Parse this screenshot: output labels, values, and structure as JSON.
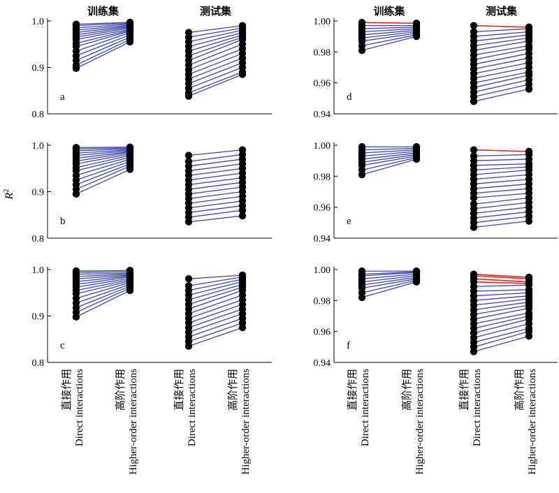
{
  "headers": {
    "train": "训练集",
    "test": "测试集"
  },
  "y_axis_label": {
    "main": "R",
    "sup": "2"
  },
  "categories": [
    {
      "cn": "直接作用",
      "en": "Direct interactions"
    },
    {
      "cn": "高阶作用",
      "en": "Higher-order interactions"
    }
  ],
  "colors": {
    "increase": "#3a47a8",
    "decrease": "#e8231e",
    "marker": "#000000"
  },
  "chart_data": [
    {
      "type": "line",
      "panel": "a",
      "ylim": [
        0.8,
        1.0
      ],
      "yticks": [
        "0.8",
        "0.9",
        "1.0"
      ],
      "yticks_values": [
        0.8,
        0.9,
        1.0
      ],
      "train": {
        "direct": [
          0.898,
          0.905,
          0.915,
          0.925,
          0.935,
          0.945,
          0.952,
          0.96,
          0.965,
          0.97,
          0.975,
          0.98,
          0.985,
          0.99,
          0.993
        ],
        "higher": [
          0.955,
          0.96,
          0.965,
          0.97,
          0.975,
          0.978,
          0.98,
          0.982,
          0.985,
          0.987,
          0.989,
          0.991,
          0.993,
          0.995,
          0.997
        ]
      },
      "test": {
        "direct": [
          0.838,
          0.845,
          0.855,
          0.865,
          0.875,
          0.885,
          0.895,
          0.905,
          0.915,
          0.925,
          0.935,
          0.945,
          0.955,
          0.965,
          0.975
        ],
        "higher": [
          0.885,
          0.89,
          0.9,
          0.91,
          0.92,
          0.93,
          0.94,
          0.95,
          0.96,
          0.965,
          0.97,
          0.975,
          0.98,
          0.985,
          0.99
        ]
      }
    },
    {
      "type": "line",
      "panel": "b",
      "ylim": [
        0.8,
        1.0
      ],
      "yticks": [
        "0.8",
        "0.9",
        "1.0"
      ],
      "yticks_values": [
        0.8,
        0.9,
        1.0
      ],
      "train": {
        "direct": [
          0.895,
          0.905,
          0.915,
          0.925,
          0.935,
          0.945,
          0.952,
          0.96,
          0.966,
          0.972,
          0.978,
          0.983,
          0.988,
          0.992,
          0.995
        ],
        "higher": [
          0.948,
          0.955,
          0.96,
          0.965,
          0.97,
          0.974,
          0.978,
          0.981,
          0.984,
          0.986,
          0.988,
          0.99,
          0.992,
          0.994,
          0.996
        ]
      },
      "test": {
        "direct": [
          0.835,
          0.845,
          0.855,
          0.865,
          0.875,
          0.885,
          0.895,
          0.905,
          0.915,
          0.925,
          0.935,
          0.945,
          0.955,
          0.965,
          0.978
        ],
        "higher": [
          0.848,
          0.86,
          0.87,
          0.88,
          0.89,
          0.9,
          0.91,
          0.92,
          0.93,
          0.94,
          0.95,
          0.96,
          0.97,
          0.98,
          0.99
        ]
      }
    },
    {
      "type": "line",
      "panel": "c",
      "ylim": [
        0.8,
        1.0
      ],
      "yticks": [
        "0.8",
        "0.9",
        "1.0"
      ],
      "yticks_values": [
        0.8,
        0.9,
        1.0
      ],
      "train": {
        "direct": [
          0.898,
          0.908,
          0.918,
          0.928,
          0.938,
          0.948,
          0.955,
          0.962,
          0.968,
          0.974,
          0.98,
          0.985,
          0.99,
          0.994,
          0.997
        ],
        "higher": [
          0.955,
          0.96,
          0.964,
          0.968,
          0.972,
          0.975,
          0.978,
          0.981,
          0.984,
          0.986,
          0.988,
          0.99,
          0.992,
          0.995,
          0.998
        ]
      },
      "test": {
        "direct": [
          0.835,
          0.845,
          0.855,
          0.865,
          0.875,
          0.885,
          0.895,
          0.905,
          0.915,
          0.925,
          0.935,
          0.945,
          0.955,
          0.965,
          0.98
        ],
        "higher": [
          0.875,
          0.885,
          0.895,
          0.905,
          0.915,
          0.925,
          0.935,
          0.945,
          0.955,
          0.962,
          0.968,
          0.974,
          0.979,
          0.984,
          0.988
        ]
      }
    },
    {
      "type": "line",
      "panel": "d",
      "ylim": [
        0.94,
        1.0
      ],
      "yticks": [
        "0.94",
        "0.96",
        "0.98",
        "1.00"
      ],
      "yticks_values": [
        0.94,
        0.96,
        0.98,
        1.0
      ],
      "train": {
        "direct": [
          0.981,
          0.984,
          0.987,
          0.989,
          0.991,
          0.993,
          0.995,
          0.997,
          0.999
        ],
        "higher": [
          0.99,
          0.991,
          0.992,
          0.993,
          0.994,
          0.995,
          0.996,
          0.997,
          0.9985
        ]
      },
      "test": {
        "direct": [
          0.948,
          0.951,
          0.954,
          0.957,
          0.96,
          0.963,
          0.966,
          0.969,
          0.972,
          0.975,
          0.978,
          0.981,
          0.984,
          0.987,
          0.99,
          0.993,
          0.997
        ],
        "higher": [
          0.956,
          0.959,
          0.962,
          0.965,
          0.967,
          0.97,
          0.973,
          0.976,
          0.979,
          0.982,
          0.984,
          0.987,
          0.989,
          0.991,
          0.993,
          0.995,
          0.996
        ]
      }
    },
    {
      "type": "line",
      "panel": "e",
      "ylim": [
        0.94,
        1.0
      ],
      "yticks": [
        "0.94",
        "0.96",
        "0.98",
        "1.00"
      ],
      "yticks_values": [
        0.94,
        0.96,
        0.98,
        1.0
      ],
      "train": {
        "direct": [
          0.981,
          0.984,
          0.987,
          0.989,
          0.991,
          0.993,
          0.995,
          0.997,
          0.999
        ],
        "higher": [
          0.991,
          0.992,
          0.993,
          0.994,
          0.995,
          0.996,
          0.997,
          0.998,
          0.999
        ]
      },
      "test": {
        "direct": [
          0.947,
          0.95,
          0.953,
          0.956,
          0.959,
          0.962,
          0.966,
          0.969,
          0.972,
          0.975,
          0.978,
          0.981,
          0.984,
          0.987,
          0.99,
          0.993,
          0.997
        ],
        "higher": [
          0.951,
          0.954,
          0.957,
          0.96,
          0.963,
          0.966,
          0.969,
          0.972,
          0.975,
          0.978,
          0.981,
          0.984,
          0.986,
          0.988,
          0.991,
          0.994,
          0.996
        ]
      }
    },
    {
      "type": "line",
      "panel": "f",
      "ylim": [
        0.94,
        1.0
      ],
      "yticks": [
        "0.94",
        "0.96",
        "0.98",
        "1.00"
      ],
      "yticks_values": [
        0.94,
        0.96,
        0.98,
        1.0
      ],
      "train": {
        "direct": [
          0.982,
          0.985,
          0.988,
          0.99,
          0.992,
          0.994,
          0.996,
          0.997,
          0.999
        ],
        "higher": [
          0.992,
          0.993,
          0.994,
          0.995,
          0.996,
          0.997,
          0.998,
          0.9985,
          0.999
        ]
      },
      "test": {
        "direct": [
          0.947,
          0.95,
          0.953,
          0.956,
          0.959,
          0.962,
          0.965,
          0.968,
          0.971,
          0.974,
          0.977,
          0.98,
          0.983,
          0.986,
          0.989,
          0.992,
          0.994,
          0.996,
          0.997
        ],
        "higher": [
          0.957,
          0.96,
          0.962,
          0.965,
          0.968,
          0.97,
          0.972,
          0.975,
          0.977,
          0.979,
          0.981,
          0.983,
          0.985,
          0.987,
          0.99,
          0.991,
          0.992,
          0.994,
          0.995
        ]
      }
    }
  ]
}
